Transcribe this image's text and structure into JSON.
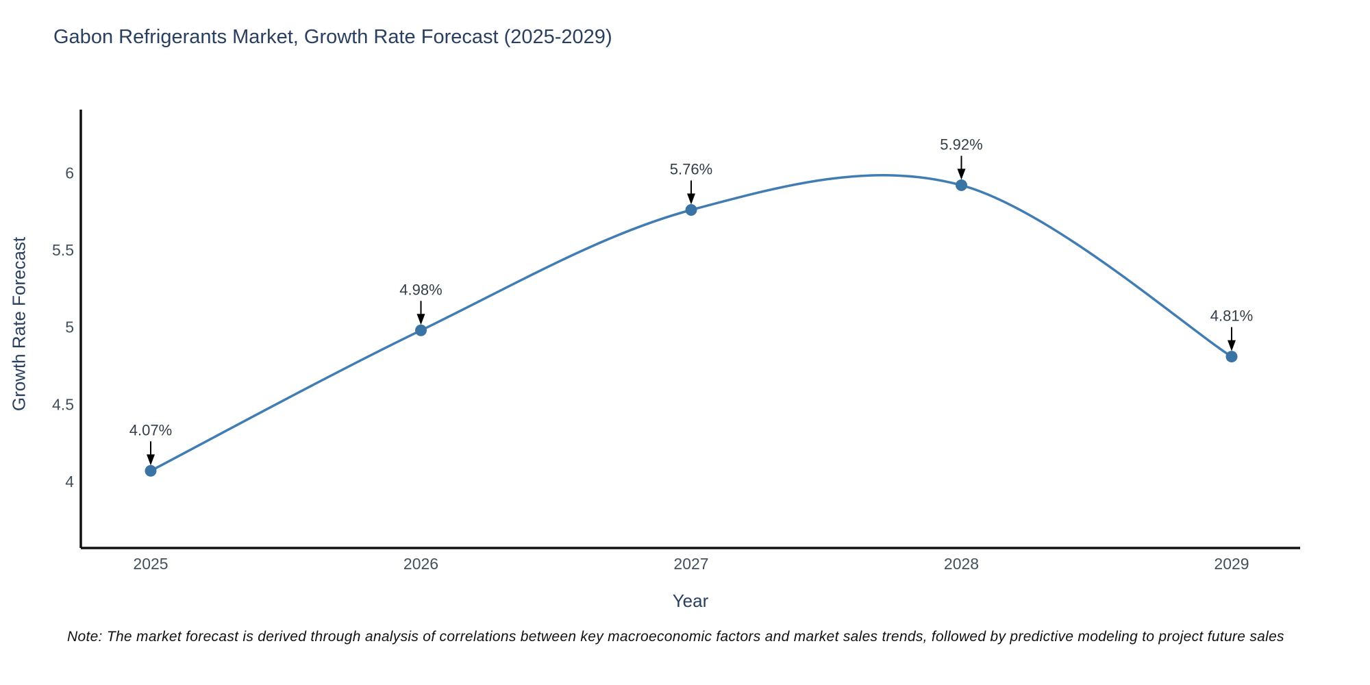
{
  "title": "Gabon Refrigerants Market, Growth Rate Forecast (2025-2029)",
  "note": "Note: The market forecast is derived through analysis of correlations between key macroeconomic factors and market sales trends, followed by predictive modeling to project future sales",
  "chart_data": {
    "type": "line",
    "title": "Gabon Refrigerants Market, Growth Rate Forecast (2025-2029)",
    "xlabel": "Year",
    "ylabel": "Growth Rate Forecast",
    "x": [
      2025,
      2026,
      2027,
      2028,
      2029
    ],
    "series": [
      {
        "name": "Growth Rate Forecast",
        "values": [
          4.07,
          4.98,
          5.76,
          5.92,
          4.81
        ],
        "point_labels": [
          "4.07%",
          "4.98%",
          "5.76%",
          "5.92%",
          "4.81%"
        ]
      }
    ],
    "line_shape": "spline",
    "markers": true,
    "annotations_arrows": true,
    "yticks": [
      4,
      4.5,
      5,
      5.5,
      6
    ],
    "ylim": [
      3.57,
      6.41
    ],
    "grid": false,
    "legend": "none",
    "colors": {
      "line": "#417cb2",
      "marker": "#3a74a5",
      "axis_line": "#111111",
      "tick_text": "#42505e",
      "title_text": "#2a3f5f",
      "annotation_text": "#333d49",
      "annotation_arrow": "#000000",
      "background": "#ffffff"
    }
  }
}
